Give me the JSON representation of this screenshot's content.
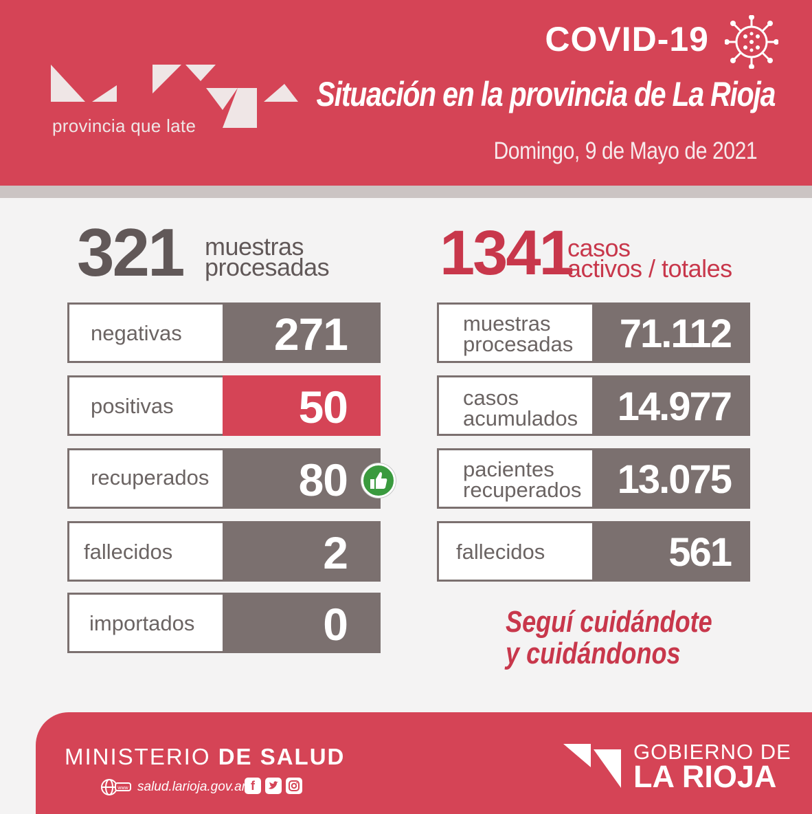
{
  "header": {
    "brand_tagline": "provincia que late",
    "covid_title": "COVID-19",
    "situation_title": "Situación en la provincia de La Rioja",
    "date": "Domingo,  9 de Mayo de 2021"
  },
  "daily": {
    "total": "321",
    "total_label_line1": "muestras",
    "total_label_line2": "procesadas",
    "rows": [
      {
        "label": "negativas",
        "value": "271"
      },
      {
        "label": "positivas",
        "value": "50"
      },
      {
        "label": "recuperados",
        "value": "80"
      },
      {
        "label": "fallecidos",
        "value": "2"
      },
      {
        "label": "importados",
        "value": "0"
      }
    ]
  },
  "cumulative": {
    "total": "1341",
    "total_label_line1": "casos",
    "total_label_line2": "activos / totales",
    "rows": [
      {
        "label_line1": "muestras",
        "label_line2": "procesadas",
        "value": "71.112"
      },
      {
        "label_line1": "casos",
        "label_line2": "acumulados",
        "value": "14.977"
      },
      {
        "label_line1": "pacientes",
        "label_line2": "recuperados",
        "value": "13.075"
      },
      {
        "label_line1": "fallecidos",
        "label_line2": "",
        "value": "561"
      }
    ]
  },
  "slogan": {
    "line1": "Seguí cuidándote",
    "line2": "y cuidándonos"
  },
  "footer": {
    "ministry_prefix": "MINISTERIO",
    "ministry_bold": "DE SALUD",
    "website": "salud.larioja.gov.ar",
    "gov_line1": "GOBIERNO DE",
    "gov_line2": "LA RIOJA"
  },
  "colors": {
    "brand_red": "#d54456",
    "dark_gray": "#7b706f",
    "text_gray": "#615858",
    "green_badge": "#3a9a3e"
  },
  "icons": [
    "virus-icon",
    "thumbs-up-icon",
    "globe-icon",
    "facebook-icon",
    "twitter-icon",
    "instagram-icon"
  ]
}
